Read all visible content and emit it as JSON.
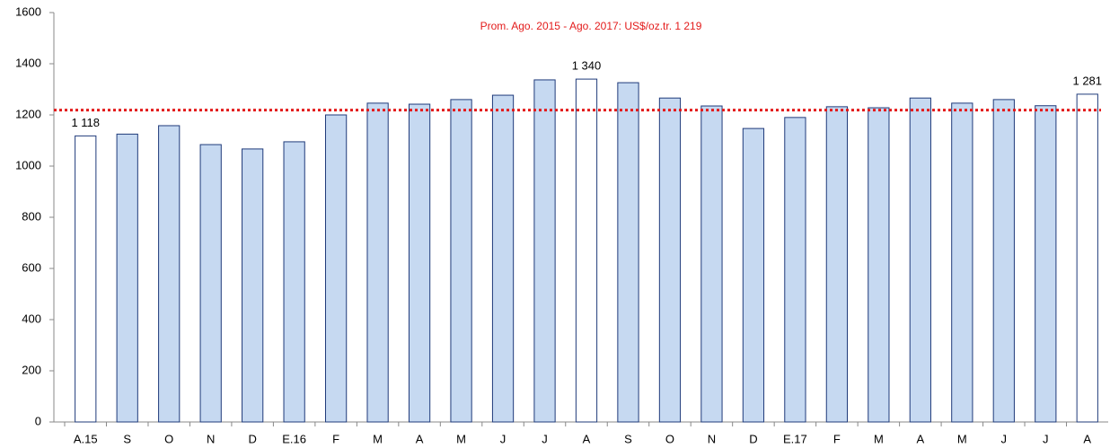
{
  "chart_data": {
    "type": "bar",
    "annotation": "Prom. Ago. 2015 - Ago. 2017: US$/oz.tr. 1 219",
    "average": 1219,
    "average_color": "#e31b1b",
    "categories": [
      "A.15",
      "S",
      "O",
      "N",
      "D",
      "E.16",
      "F",
      "M",
      "A",
      "M",
      "J",
      "J",
      "A",
      "S",
      "O",
      "N",
      "D",
      "E.17",
      "F",
      "M",
      "A",
      "M",
      "J",
      "J",
      "A"
    ],
    "values": [
      1118,
      1125,
      1158,
      1084,
      1067,
      1095,
      1200,
      1246,
      1242,
      1260,
      1277,
      1337,
      1340,
      1326,
      1266,
      1235,
      1147,
      1190,
      1232,
      1228,
      1266,
      1246,
      1260,
      1236,
      1281
    ],
    "value_labels": [
      "1 118",
      null,
      null,
      null,
      null,
      null,
      null,
      null,
      null,
      null,
      null,
      null,
      "1 340",
      null,
      null,
      null,
      null,
      null,
      null,
      null,
      null,
      null,
      null,
      null,
      "1 281"
    ],
    "colors": [
      "#ffffff",
      "#c6d9f1",
      "#c6d9f1",
      "#c6d9f1",
      "#c6d9f1",
      "#c6d9f1",
      "#c6d9f1",
      "#c6d9f1",
      "#c6d9f1",
      "#c6d9f1",
      "#c6d9f1",
      "#c6d9f1",
      "#ffffff",
      "#c6d9f1",
      "#c6d9f1",
      "#c6d9f1",
      "#c6d9f1",
      "#c6d9f1",
      "#c6d9f1",
      "#c6d9f1",
      "#c6d9f1",
      "#c6d9f1",
      "#c6d9f1",
      "#c6d9f1",
      "#ffffff"
    ],
    "edge_color": "#1f3a7a",
    "ylim": [
      0,
      1600
    ],
    "yticks": [
      0,
      200,
      400,
      600,
      800,
      1000,
      1200,
      1400,
      1600
    ]
  }
}
